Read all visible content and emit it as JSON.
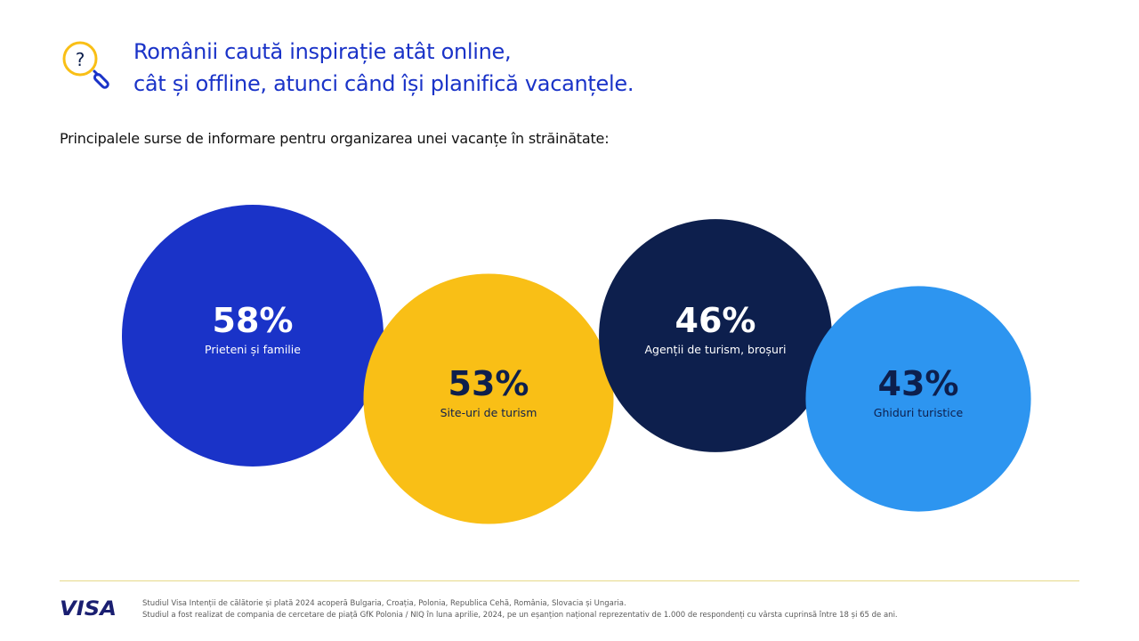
{
  "header": {
    "title_line1": "Românii caută inspirație atât online,",
    "title_line2": "cât și offline, atunci când își planifică vacanțele.",
    "icon": "question-magnifier-icon"
  },
  "subtitle": "Principalele surse de informare pentru organizarea unei vacanțe în străinătate:",
  "chart_data": {
    "type": "bubble",
    "unit": "%",
    "categories": [
      "Prieteni și familie",
      "Site-uri de turism",
      "Agenții de turism, broșuri",
      "Ghiduri turistice"
    ],
    "values": [
      58,
      53,
      46,
      43
    ],
    "value_labels": [
      "58%",
      "53%",
      "46%",
      "43%"
    ],
    "colors": [
      "#1a33c8",
      "#f9bf16",
      "#0d1f4d",
      "#2d95f0"
    ],
    "value_text_colors": [
      "#ffffff",
      "#0d1f4d",
      "#ffffff",
      "#0d1f4d"
    ],
    "label_text_colors": [
      "#ffffff",
      "#0d1f4d",
      "#ffffff",
      "#0d1f4d"
    ]
  },
  "footer": {
    "logo_text": "VISA",
    "note_line1": "Studiul Visa Intenții de călătorie și plată 2024 acoperă Bulgaria, Croația, Polonia, Republica Cehă, România, Slovacia și Ungaria.",
    "note_line2": "Studiul a fost realizat de compania de cercetare de piață GfK Polonia / NIQ în luna aprilie, 2024, pe un eșanțion național reprezentativ de 1.000 de respondenți cu vârsta cuprinsă între 18 și 65 de ani."
  }
}
